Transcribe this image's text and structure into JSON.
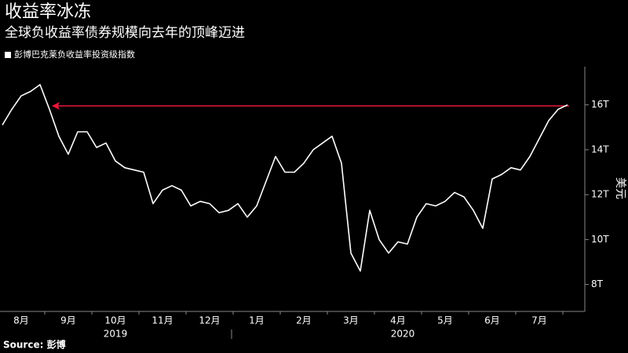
{
  "chart_data": {
    "type": "line",
    "title": "收益率冰冻",
    "subtitle": "全球负收益率债券规模向去年的顶峰迈进",
    "source": "Source: 彭博",
    "y_axis_label": "美元",
    "years": [
      "2019",
      "2020"
    ],
    "categories": [
      null,
      null,
      "8月",
      null,
      null,
      null,
      null,
      "9月",
      null,
      null,
      null,
      null,
      "10月",
      null,
      null,
      null,
      null,
      "11月",
      null,
      null,
      null,
      null,
      "12月",
      null,
      null,
      null,
      null,
      "1月",
      null,
      null,
      null,
      null,
      "2月",
      null,
      null,
      null,
      null,
      "3月",
      null,
      null,
      null,
      null,
      "4月",
      null,
      null,
      null,
      null,
      "5月",
      null,
      null,
      null,
      null,
      "6月",
      null,
      null,
      null,
      null,
      "7月",
      null,
      null,
      null
    ],
    "series": [
      {
        "name": "彭博巴克莱负收益率投资级指数",
        "color": "#ffffff",
        "values": [
          15.1,
          15.8,
          16.4,
          16.6,
          16.9,
          15.8,
          14.6,
          13.8,
          14.8,
          14.8,
          14.1,
          14.3,
          13.5,
          13.2,
          13.1,
          13.0,
          11.6,
          12.2,
          12.4,
          12.2,
          11.5,
          11.7,
          11.6,
          11.2,
          11.3,
          11.6,
          11.0,
          11.5,
          12.6,
          13.7,
          13.0,
          13.0,
          13.4,
          14.0,
          14.3,
          14.6,
          13.4,
          9.4,
          8.6,
          11.3,
          10.0,
          9.4,
          9.9,
          9.8,
          11.0,
          11.6,
          11.5,
          11.7,
          12.1,
          11.9,
          11.3,
          10.5,
          12.7,
          12.9,
          13.2,
          13.1,
          13.7,
          14.5,
          15.3,
          15.8,
          16.0
        ]
      }
    ],
    "ylim": [
      6.8,
      17.7
    ],
    "yticks": [
      {
        "value": 8,
        "label": "8T"
      },
      {
        "value": 10,
        "label": "10T"
      },
      {
        "value": 12,
        "label": "12T"
      },
      {
        "value": 14,
        "label": "14T"
      },
      {
        "value": 16,
        "label": "16T"
      }
    ],
    "grid": false,
    "background": "#000000",
    "annotation_color": "#e8173a"
  }
}
